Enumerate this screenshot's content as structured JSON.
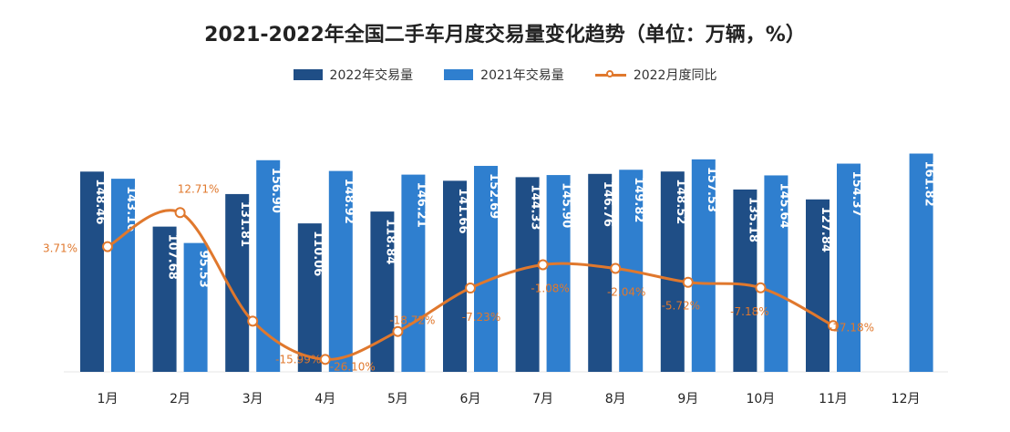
{
  "chart_data": {
    "type": "bar",
    "title": "2021-2022年全国二手车月度交易量变化趋势（单位：万辆，%）",
    "categories": [
      "1月",
      "2月",
      "3月",
      "4月",
      "5月",
      "6月",
      "7月",
      "8月",
      "9月",
      "10月",
      "11月",
      "12月"
    ],
    "series": [
      {
        "name": "2022年交易量",
        "type": "bar",
        "color": "#1f4e86",
        "values": [
          148.46,
          107.68,
          131.81,
          110.06,
          118.84,
          141.66,
          144.33,
          146.76,
          148.52,
          135.18,
          127.84,
          null
        ]
      },
      {
        "name": "2021年交易量",
        "type": "bar",
        "color": "#2f7fcf",
        "values": [
          143.16,
          95.53,
          156.9,
          148.92,
          146.21,
          152.69,
          145.9,
          149.82,
          157.53,
          145.64,
          154.37,
          161.82
        ]
      },
      {
        "name": "2022月度同比",
        "type": "line",
        "color": "#e0782d",
        "values": [
          3.71,
          12.71,
          -15.99,
          -26.1,
          -18.72,
          -7.23,
          -1.08,
          -2.04,
          -5.72,
          -7.18,
          -17.18,
          null
        ],
        "labels": [
          "3.71%",
          "12.71%",
          "-15.99%",
          "-26.10%",
          "-18.72%",
          "-7.23%",
          "-1.08%",
          "-2.04%",
          "-5.72%",
          "-7.18%",
          "-17.18%",
          ""
        ]
      }
    ],
    "ylabel": "",
    "xlabel": "",
    "legend_position": "top-center",
    "grid": false
  }
}
